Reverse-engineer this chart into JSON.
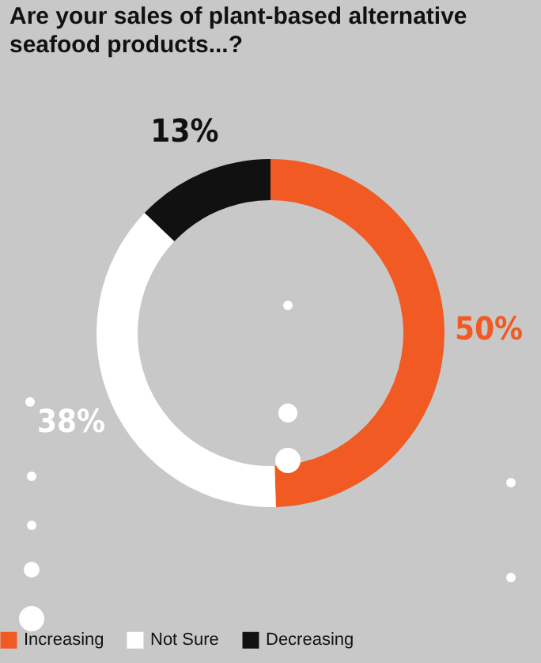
{
  "chart_data": {
    "type": "donut",
    "title": "Are your sales of plant-based alternative seafood products...?",
    "categories": [
      "Increasing",
      "Not Sure",
      "Decreasing"
    ],
    "values": [
      50,
      38,
      13
    ],
    "colors": [
      "#f15a22",
      "#ffffff",
      "#111111"
    ],
    "value_labels": [
      "50%",
      "38%",
      "13%"
    ],
    "legend": "bottom"
  }
}
